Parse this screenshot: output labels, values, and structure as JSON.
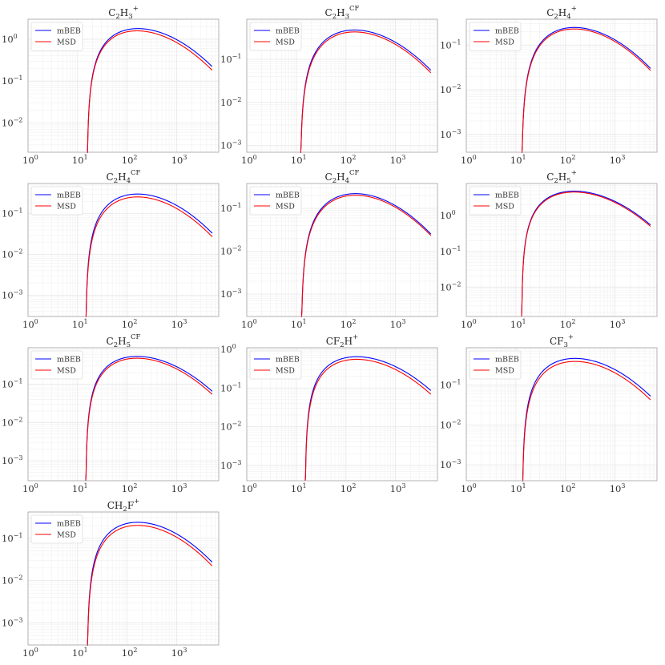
{
  "chart_data": [
    {
      "type": "line",
      "title": [
        "C",
        "2",
        "H",
        "3",
        "+"
      ],
      "xlim": [
        1,
        7000
      ],
      "ylim": [
        0.002,
        3.0
      ],
      "onset": 15.5,
      "series": [
        {
          "name": "mBEB",
          "color": "#0000ff",
          "peak_x": 120,
          "peak_y": 1.95,
          "end_y": 0.22
        },
        {
          "name": "MSD",
          "color": "#ff0000",
          "peak_x": 115,
          "peak_y": 1.72,
          "end_y": 0.18
        }
      ]
    },
    {
      "type": "line",
      "title": [
        "C",
        "2",
        "H",
        "3",
        "CF",
        "2",
        "+"
      ],
      "xlim": [
        1,
        7000
      ],
      "ylim": [
        0.0007,
        0.85
      ],
      "onset": 12,
      "series": [
        {
          "name": "mBEB",
          "color": "#0000ff",
          "peak_x": 110,
          "peak_y": 0.52,
          "end_y": 0.055
        },
        {
          "name": "MSD",
          "color": "#ff0000",
          "peak_x": 110,
          "peak_y": 0.47,
          "end_y": 0.048
        }
      ]
    },
    {
      "type": "line",
      "title": [
        "C",
        "2",
        "H",
        "4",
        "+"
      ],
      "xlim": [
        1,
        7000
      ],
      "ylim": [
        0.0004,
        0.38
      ],
      "onset": 13,
      "series": [
        {
          "name": "mBEB",
          "color": "#0000ff",
          "peak_x": 110,
          "peak_y": 0.27,
          "end_y": 0.03
        },
        {
          "name": "MSD",
          "color": "#ff0000",
          "peak_x": 110,
          "peak_y": 0.25,
          "end_y": 0.027
        }
      ]
    },
    {
      "type": "line",
      "title": [
        "C",
        "2",
        "H",
        "4",
        "CF",
        "",
        "+"
      ],
      "xlim": [
        1,
        7000
      ],
      "ylim": [
        0.0003,
        0.55
      ],
      "onset": 14.5,
      "series": [
        {
          "name": "mBEB",
          "color": "#0000ff",
          "peak_x": 120,
          "peak_y": 0.33,
          "end_y": 0.033
        },
        {
          "name": "MSD",
          "color": "#ff0000",
          "peak_x": 120,
          "peak_y": 0.28,
          "end_y": 0.027
        }
      ]
    },
    {
      "type": "line",
      "title": [
        "C",
        "2",
        "H",
        "4",
        "CF",
        "2",
        "+"
      ],
      "xlim": [
        1,
        7000
      ],
      "ylim": [
        0.0003,
        0.38
      ],
      "onset": 12.5,
      "series": [
        {
          "name": "mBEB",
          "color": "#0000ff",
          "peak_x": 115,
          "peak_y": 0.24,
          "end_y": 0.025
        },
        {
          "name": "MSD",
          "color": "#ff0000",
          "peak_x": 115,
          "peak_y": 0.22,
          "end_y": 0.023
        }
      ]
    },
    {
      "type": "line",
      "title": [
        "C",
        "2",
        "H",
        "5",
        "+"
      ],
      "xlim": [
        1,
        7000
      ],
      "ylim": [
        0.0015,
        8.0
      ],
      "onset": 13,
      "series": [
        {
          "name": "mBEB",
          "color": "#0000ff",
          "peak_x": 110,
          "peak_y": 5.3,
          "end_y": 0.55
        },
        {
          "name": "MSD",
          "color": "#ff0000",
          "peak_x": 110,
          "peak_y": 5.0,
          "end_y": 0.5
        }
      ]
    },
    {
      "type": "line",
      "title": [
        "C",
        "2",
        "H",
        "5",
        "CF",
        "2",
        "+"
      ],
      "xlim": [
        1,
        7000
      ],
      "ylim": [
        0.0003,
        0.9
      ],
      "onset": 14.5,
      "series": [
        {
          "name": "mBEB",
          "color": "#0000ff",
          "peak_x": 115,
          "peak_y": 0.58,
          "end_y": 0.065
        },
        {
          "name": "MSD",
          "color": "#ff0000",
          "peak_x": 115,
          "peak_y": 0.52,
          "end_y": 0.054
        }
      ]
    },
    {
      "type": "line",
      "title": [
        "CF",
        "2",
        "H",
        "",
        "+"
      ],
      "xlim": [
        1,
        7000
      ],
      "ylim": [
        0.0004,
        1.1
      ],
      "onset": 15,
      "series": [
        {
          "name": "mBEB",
          "color": "#0000ff",
          "peak_x": 120,
          "peak_y": 0.7,
          "end_y": 0.085
        },
        {
          "name": "MSD",
          "color": "#ff0000",
          "peak_x": 120,
          "peak_y": 0.6,
          "end_y": 0.068
        }
      ]
    },
    {
      "type": "line",
      "title": [
        "CF",
        "",
        "",
        "3",
        "+"
      ],
      "xlim": [
        1,
        7000
      ],
      "ylim": [
        0.0004,
        0.85
      ],
      "onset": 13.5,
      "series": [
        {
          "name": "mBEB",
          "color": "#0000ff",
          "peak_x": 115,
          "peak_y": 0.5,
          "end_y": 0.052
        },
        {
          "name": "MSD",
          "color": "#ff0000",
          "peak_x": 115,
          "peak_y": 0.42,
          "end_y": 0.042
        }
      ]
    },
    {
      "type": "line",
      "title": [
        "CH",
        "2",
        "F",
        "",
        "+"
      ],
      "xlim": [
        1,
        7000
      ],
      "ylim": [
        0.0003,
        0.42
      ],
      "onset": 15.5,
      "series": [
        {
          "name": "mBEB",
          "color": "#0000ff",
          "peak_x": 120,
          "peak_y": 0.26,
          "end_y": 0.027
        },
        {
          "name": "MSD",
          "color": "#ff0000",
          "peak_x": 120,
          "peak_y": 0.22,
          "end_y": 0.022
        }
      ]
    }
  ]
}
